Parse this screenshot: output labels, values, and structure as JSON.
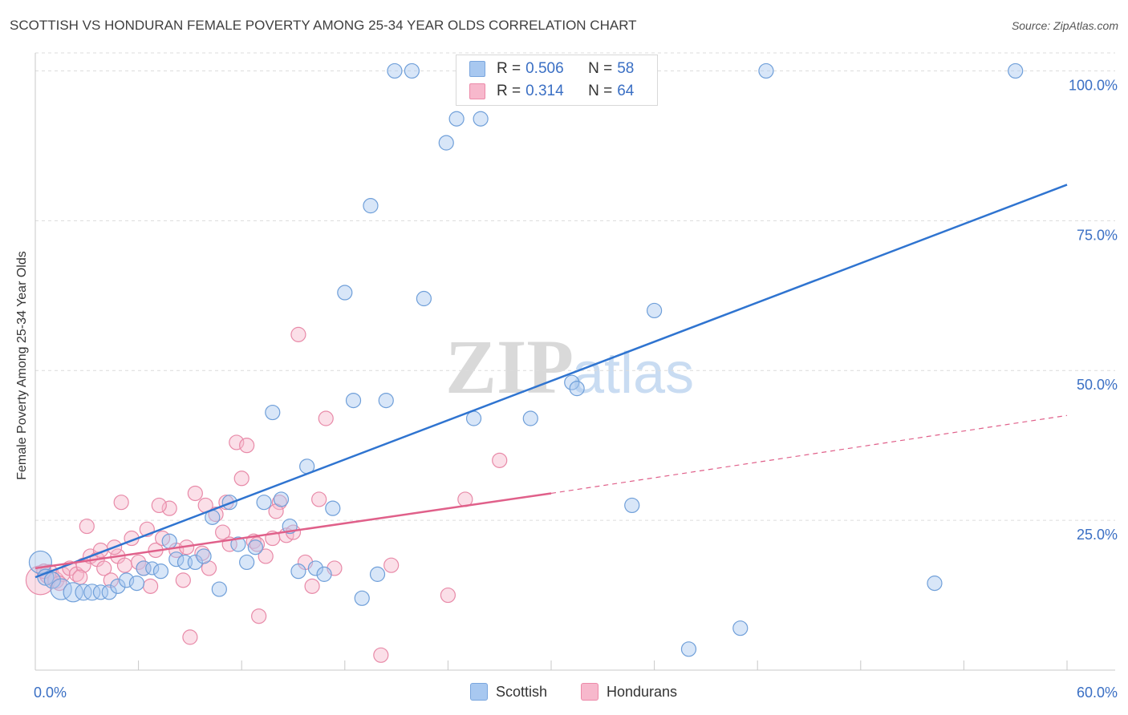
{
  "title": "SCOTTISH VS HONDURAN FEMALE POVERTY AMONG 25-34 YEAR OLDS CORRELATION CHART",
  "source": "Source: ZipAtlas.com",
  "watermark": {
    "zip": "ZIP",
    "atlas": "atlas"
  },
  "legend": {
    "r_label": "R =",
    "n_label": "N =",
    "series": [
      {
        "r": "0.506",
        "n": "58",
        "color": "#a8c8f0",
        "border": "#7aa6de"
      },
      {
        "r": "0.314",
        "n": "64",
        "color": "#f7b8cc",
        "border": "#ec8aa9"
      }
    ]
  },
  "bottom_legend": [
    "Scottish",
    "Hondurans"
  ],
  "chart_data": {
    "type": "scatter",
    "title": "SCOTTISH VS HONDURAN FEMALE POVERTY AMONG 25-34 YEAR OLDS CORRELATION CHART",
    "xlabel": "",
    "ylabel": "Female Poverty Among 25-34 Year Olds",
    "xlim": [
      0,
      60
    ],
    "ylim": [
      0,
      103
    ],
    "x_tick_labels": [
      "0.0%",
      "60.0%"
    ],
    "y_ticks": [
      25,
      50,
      75,
      100
    ],
    "y_tick_labels": [
      "25.0%",
      "50.0%",
      "75.0%",
      "100.0%"
    ],
    "grid": "horizontal dashed",
    "legend_placement": "top-center",
    "series": [
      {
        "name": "Scottish",
        "color": "#a8c8f0",
        "edge": "#6f9fd9",
        "trend_color": "#2f74d0",
        "trend": [
          [
            0,
            15.5
          ],
          [
            60,
            81
          ]
        ],
        "points": [
          [
            0.3,
            18,
            14
          ],
          [
            0.6,
            15.5,
            10
          ],
          [
            1,
            15,
            10
          ],
          [
            1.5,
            13.5,
            13
          ],
          [
            2.2,
            13,
            12
          ],
          [
            2.8,
            13,
            10
          ],
          [
            3.3,
            13,
            10
          ],
          [
            3.8,
            13,
            9
          ],
          [
            4.3,
            13,
            9
          ],
          [
            4.8,
            14,
            9
          ],
          [
            5.3,
            15,
            9
          ],
          [
            5.9,
            14.5,
            9
          ],
          [
            6.3,
            17,
            9
          ],
          [
            6.8,
            17,
            8
          ],
          [
            7.3,
            16.5,
            9
          ],
          [
            7.8,
            21.5,
            9
          ],
          [
            8.2,
            18.5,
            9
          ],
          [
            8.7,
            18,
            9
          ],
          [
            9.3,
            18,
            9
          ],
          [
            9.8,
            19,
            9
          ],
          [
            10.3,
            25.5,
            9
          ],
          [
            10.7,
            13.5,
            9
          ],
          [
            11.3,
            28,
            9
          ],
          [
            11.8,
            21,
            9
          ],
          [
            12.3,
            18,
            9
          ],
          [
            12.8,
            20.5,
            9
          ],
          [
            13.3,
            28,
            9
          ],
          [
            13.8,
            43,
            9
          ],
          [
            14.3,
            28.5,
            9
          ],
          [
            14.8,
            24,
            9
          ],
          [
            15.3,
            16.5,
            9
          ],
          [
            15.8,
            34,
            9
          ],
          [
            16.3,
            17,
            9
          ],
          [
            16.8,
            16,
            9
          ],
          [
            17.3,
            27,
            9
          ],
          [
            18.0,
            63,
            9
          ],
          [
            18.5,
            45,
            9
          ],
          [
            19.0,
            12,
            9
          ],
          [
            19.5,
            77.5,
            9
          ],
          [
            19.9,
            16,
            9
          ],
          [
            20.4,
            45,
            9
          ],
          [
            20.9,
            100,
            9
          ],
          [
            21.9,
            100,
            9
          ],
          [
            22.6,
            62,
            9
          ],
          [
            23.9,
            88,
            9
          ],
          [
            24.5,
            92,
            9
          ],
          [
            25.5,
            42,
            9
          ],
          [
            25.9,
            92,
            9
          ],
          [
            28.8,
            42,
            9
          ],
          [
            31.2,
            48,
            9
          ],
          [
            31.5,
            47,
            9
          ],
          [
            34.7,
            27.5,
            9
          ],
          [
            36.0,
            60,
            9
          ],
          [
            38.0,
            3.5,
            9
          ],
          [
            41.0,
            7,
            9
          ],
          [
            42.5,
            100,
            9
          ],
          [
            52.3,
            14.5,
            9
          ],
          [
            57.0,
            100,
            9
          ]
        ]
      },
      {
        "name": "Hondurans",
        "color": "#f7b8cc",
        "edge": "#e88aa8",
        "trend_color": "#e0608a",
        "trend": [
          [
            0,
            17
          ],
          [
            30,
            29.5
          ]
        ],
        "trend_dashed": [
          [
            30,
            29.5
          ],
          [
            60,
            42.5
          ]
        ],
        "points": [
          [
            0.3,
            15,
            18
          ],
          [
            0.8,
            16,
            12
          ],
          [
            1.2,
            15,
            10
          ],
          [
            1.6,
            16,
            9
          ],
          [
            2,
            17,
            9
          ],
          [
            2.4,
            16,
            9
          ],
          [
            2.8,
            17.5,
            9
          ],
          [
            3.2,
            19,
            9
          ],
          [
            3.6,
            18.5,
            9
          ],
          [
            4.0,
            17,
            9
          ],
          [
            4.4,
            15,
            9
          ],
          [
            4.8,
            19,
            9
          ],
          [
            5.2,
            17.5,
            9
          ],
          [
            5.6,
            22,
            9
          ],
          [
            6.0,
            18,
            9
          ],
          [
            6.3,
            17,
            9
          ],
          [
            6.7,
            14,
            9
          ],
          [
            7.0,
            20,
            9
          ],
          [
            7.4,
            22,
            9
          ],
          [
            7.8,
            27,
            9
          ],
          [
            8.2,
            20,
            9
          ],
          [
            8.6,
            15,
            9
          ],
          [
            9.0,
            5.5,
            9
          ],
          [
            9.3,
            29.5,
            9
          ],
          [
            9.7,
            19.5,
            9
          ],
          [
            10.1,
            17,
            9
          ],
          [
            10.5,
            26,
            9
          ],
          [
            10.9,
            23,
            9
          ],
          [
            11.3,
            21,
            9
          ],
          [
            11.7,
            38,
            9
          ],
          [
            12.0,
            32,
            9
          ],
          [
            12.3,
            37.5,
            9
          ],
          [
            12.7,
            21.5,
            9
          ],
          [
            13.0,
            9,
            9
          ],
          [
            13.4,
            19,
            9
          ],
          [
            13.8,
            22,
            9
          ],
          [
            14.2,
            28,
            9
          ],
          [
            14.6,
            22.5,
            9
          ],
          [
            15.0,
            23,
            9
          ],
          [
            15.3,
            56,
            9
          ],
          [
            15.7,
            18,
            9
          ],
          [
            16.1,
            14,
            9
          ],
          [
            16.5,
            28.5,
            9
          ],
          [
            16.9,
            42,
            9
          ],
          [
            17.4,
            17,
            9
          ],
          [
            20.1,
            2.5,
            9
          ],
          [
            20.7,
            17.5,
            9
          ],
          [
            24.0,
            12.5,
            9
          ],
          [
            25.0,
            28.5,
            9
          ],
          [
            27.0,
            35,
            9
          ],
          [
            3.0,
            24,
            9
          ],
          [
            5.0,
            28,
            9
          ],
          [
            1.4,
            14.5,
            9
          ],
          [
            2.6,
            15.5,
            9
          ],
          [
            4.6,
            20.5,
            9
          ],
          [
            6.5,
            23.5,
            9
          ],
          [
            8.8,
            20.5,
            9
          ],
          [
            9.9,
            27.5,
            9
          ],
          [
            11.1,
            28,
            9
          ],
          [
            12.9,
            21,
            9
          ],
          [
            14.0,
            26.5,
            9
          ],
          [
            3.8,
            20,
            9
          ],
          [
            0.5,
            16.5,
            9
          ],
          [
            7.2,
            27.5,
            9
          ]
        ]
      }
    ]
  }
}
